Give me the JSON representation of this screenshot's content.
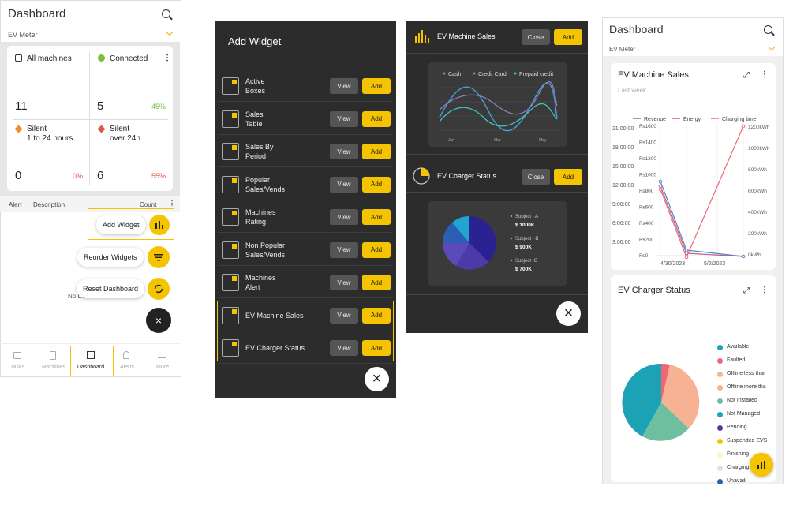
{
  "dash1": {
    "title": "Dashboard",
    "meter": "EV Meter",
    "stats": [
      {
        "label": "All machines",
        "value": "11",
        "pct": ""
      },
      {
        "label": "Connected",
        "value": "5",
        "pct": "45%"
      },
      {
        "label": "Silent\n1 to 24 hours",
        "value": "0",
        "pct": "0%"
      },
      {
        "label": "Silent\nover 24h",
        "value": "6",
        "pct": "55%"
      }
    ],
    "cols": {
      "alert": "Alert",
      "description": "Description",
      "count": "Count"
    },
    "empty": "No Data Found",
    "fab": {
      "add": "Add Widget",
      "reorder": "Reorder Widgets",
      "reset": "Reset Dashboard"
    },
    "nav": [
      "Tasks",
      "Machines",
      "Dashboard",
      "Alerts",
      "More"
    ]
  },
  "addw": {
    "title": "Add Widget",
    "items": [
      "Active\nBoxes",
      "Sales\nTable",
      "Sales By\nPeriod",
      "Popular\nSales/Vends",
      "Machines\nRating",
      "Non Popular\nSales/Vends",
      "Machines\nAlert",
      "EV Machine Sales",
      "EV Charger Status"
    ],
    "view": "View",
    "add": "Add"
  },
  "preview": {
    "w1": "EV Machine Sales",
    "w2": "EV Charger Status",
    "close": "Close",
    "add": "Add",
    "legend": [
      "Cash",
      "Credit Card",
      "Prepaid credit"
    ],
    "months": [
      "Jan",
      "Mar",
      "May"
    ],
    "subjects": [
      {
        "name": "Subject - A",
        "val": "$ 1000K"
      },
      {
        "name": "Subject - B",
        "val": "$ 900K"
      },
      {
        "name": "Subject -C",
        "val": "$ 700K"
      }
    ]
  },
  "dash2": {
    "title": "Dashboard",
    "meter": "EV Meter",
    "sales": {
      "title": "EV Machine Sales",
      "sub": "Last week",
      "legend": [
        "Revenue",
        "Energy",
        "Charging time"
      ],
      "left": [
        "21:00:00",
        "18:00:00",
        "15:00:00",
        "12:00:00",
        "9:00:00",
        "6:00:00",
        "3:00:00"
      ],
      "mid": [
        "₨1600",
        "₨1400",
        "₨1200",
        "₨1000",
        "₨800",
        "₨600",
        "₨400",
        "₨200",
        "₨0"
      ],
      "right": [
        "1200kWh",
        "1000kWh",
        "800kWh",
        "600kWh",
        "400kWh",
        "200kWh",
        "0kWh"
      ],
      "x": [
        "4/30/2023",
        "5/2/2023"
      ]
    },
    "status": {
      "title": "EV Charger Status",
      "legend": [
        "Available",
        "Faulted",
        "Offline less thar",
        "Offline more tha",
        "Not Installed",
        "Not Managed",
        "Pending",
        "Suspended EVS",
        "Finishing",
        "Charging",
        "Unavaili"
      ]
    }
  },
  "colors": {
    "accent": "#f5c400",
    "dark": "#2c2c2c",
    "red": "#e2574c",
    "green": "#7cbf3a"
  }
}
